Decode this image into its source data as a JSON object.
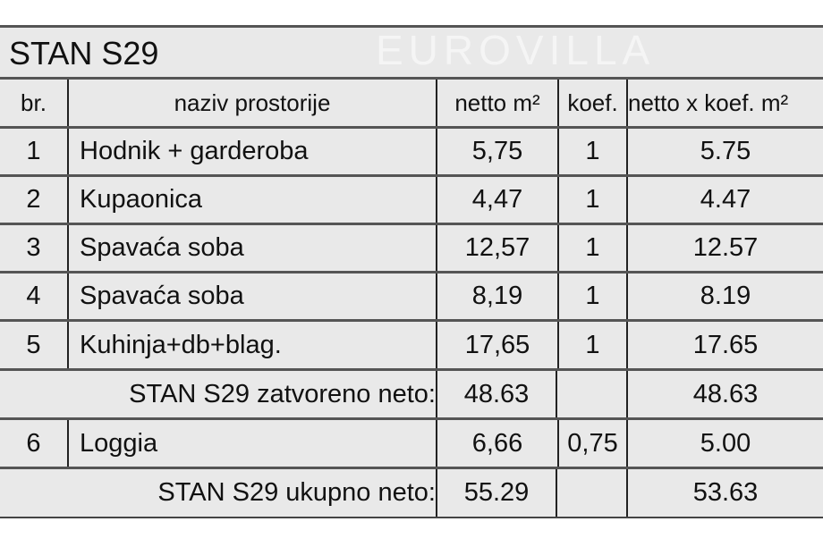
{
  "title": "STAN S29",
  "headers": {
    "br": "br.",
    "name": "naziv prostorije",
    "netto": "netto m²",
    "koef": "koef.",
    "nk": "netto x koef. m²"
  },
  "rooms": [
    {
      "br": "1",
      "name": "Hodnik + garderoba",
      "netto": "5,75",
      "koef": "1",
      "nk": "5.75"
    },
    {
      "br": "2",
      "name": "Kupaonica",
      "netto": "4,47",
      "koef": "1",
      "nk": "4.47"
    },
    {
      "br": "3",
      "name": "Spavaća soba",
      "netto": "12,57",
      "koef": "1",
      "nk": "12.57"
    },
    {
      "br": "4",
      "name": "Spavaća soba",
      "netto": "8,19",
      "koef": "1",
      "nk": "8.19"
    },
    {
      "br": "5",
      "name": "Kuhinja+db+blag.",
      "netto": "17,65",
      "koef": "1",
      "nk": "17.65"
    }
  ],
  "closed": {
    "label": "STAN S29 zatvoreno neto:",
    "netto": "48.63",
    "nk": "48.63"
  },
  "loggia": {
    "br": "6",
    "name": "Loggia",
    "netto": "6,66",
    "koef": "0,75",
    "nk": "5.00"
  },
  "total": {
    "label": "STAN S29 ukupno neto:",
    "netto": "55.29",
    "nk": "53.63"
  },
  "watermark": "EUROVILLA"
}
